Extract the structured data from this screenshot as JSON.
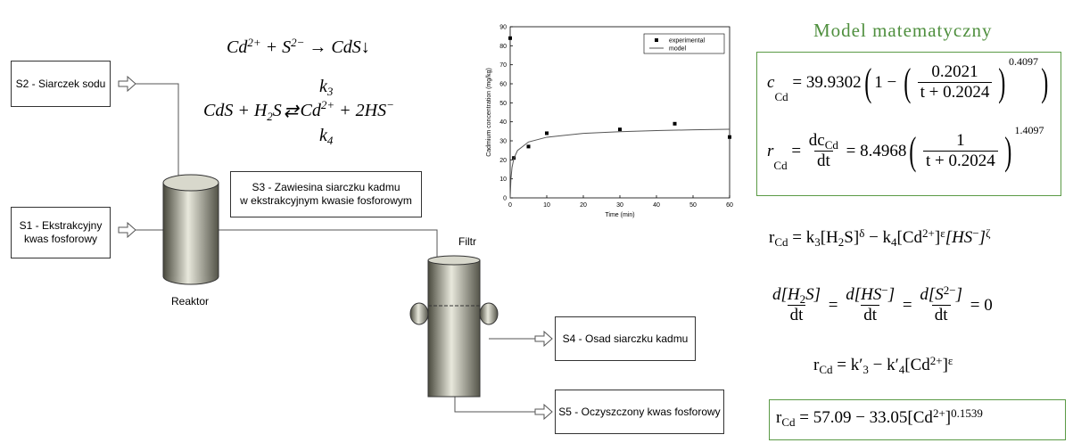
{
  "diagram": {
    "inputs": {
      "s2": "S2 - Siarczek sodu",
      "s1": [
        "S1 - Ekstrakcyjny",
        "kwas fosforowy"
      ]
    },
    "streams": {
      "s3": [
        "S3 - Zawiesina siarczku kadmu",
        "w ekstrakcyjnym kwasie fosforowym"
      ],
      "s4": "S4 - Osad siarczku kadmu",
      "s5": "S5 - Oczyszczony kwas fosforowy"
    },
    "units": {
      "reactor": "Reaktor",
      "filter": "Filtr"
    }
  },
  "reactions": {
    "r1": [
      "Cd",
      "2+",
      " + ",
      "S",
      "2−",
      " → ",
      "CdS↓"
    ],
    "k3": [
      "k",
      "3"
    ],
    "r2": [
      "CdS + H",
      "2",
      "S",
      "⇄",
      "Cd",
      "2+",
      " + 2HS",
      "−"
    ],
    "k4": [
      "k",
      "4"
    ]
  },
  "chart_data": {
    "type": "scatter",
    "xlabel": "Time (min)",
    "ylabel": "Cadmium concentration (mg/kg)",
    "xlim": [
      0,
      60
    ],
    "ylim": [
      0,
      90
    ],
    "xticks": [
      0,
      10,
      20,
      30,
      40,
      50,
      60
    ],
    "yticks": [
      0,
      10,
      20,
      30,
      40,
      50,
      60,
      70,
      80,
      90
    ],
    "legend": "upper right",
    "series": [
      {
        "name": "experimental",
        "color": "#000000",
        "marker": "square",
        "x": [
          0,
          1,
          5,
          10,
          30,
          45,
          60
        ],
        "values": [
          84,
          21,
          27,
          34,
          36,
          39,
          32
        ]
      },
      {
        "name": "model",
        "color": "#555555",
        "marker": "line",
        "x": [
          0,
          0.2,
          0.5,
          1,
          2,
          5,
          10,
          20,
          30,
          40,
          50,
          60
        ],
        "values": [
          0,
          9.8,
          16,
          20.7,
          24.9,
          29.4,
          31.9,
          33.9,
          34.8,
          35.4,
          35.8,
          36.1
        ]
      }
    ]
  },
  "model": {
    "title": "Model matematyczny",
    "eq1": [
      "c",
      "Cd",
      " = 39.9302",
      "(",
      "1 − ",
      "(",
      "0.2021",
      "t + 0.2024",
      ")",
      "0.4097",
      ")"
    ],
    "eq2": [
      "r",
      "Cd",
      " = ",
      "dc",
      "Cd",
      "dt",
      " = 8.4968",
      "(",
      "1",
      "t + 0.2024",
      ")",
      "1.4097"
    ],
    "eq3": [
      "r",
      "Cd",
      " = k",
      "3",
      "[H",
      "2",
      "S]",
      "δ",
      " − k",
      "4",
      "[Cd",
      "2+",
      "]",
      "ε",
      "[HS",
      "−",
      "]",
      "ζ"
    ],
    "eq4": [
      "d[H",
      "2",
      "S]",
      "dt",
      " = ",
      "d[HS",
      "−",
      "]",
      "dt",
      " = ",
      "d[S",
      "2−",
      "]",
      "dt",
      " = 0"
    ],
    "eq5": [
      "r",
      "Cd",
      " = k′",
      "3",
      " − k′",
      "4",
      "[Cd",
      "2+",
      "]",
      "ε"
    ],
    "eq6": [
      "r",
      "Cd",
      " = 57.09 − 33.05[Cd",
      "2+",
      "]",
      "0.1539"
    ]
  }
}
